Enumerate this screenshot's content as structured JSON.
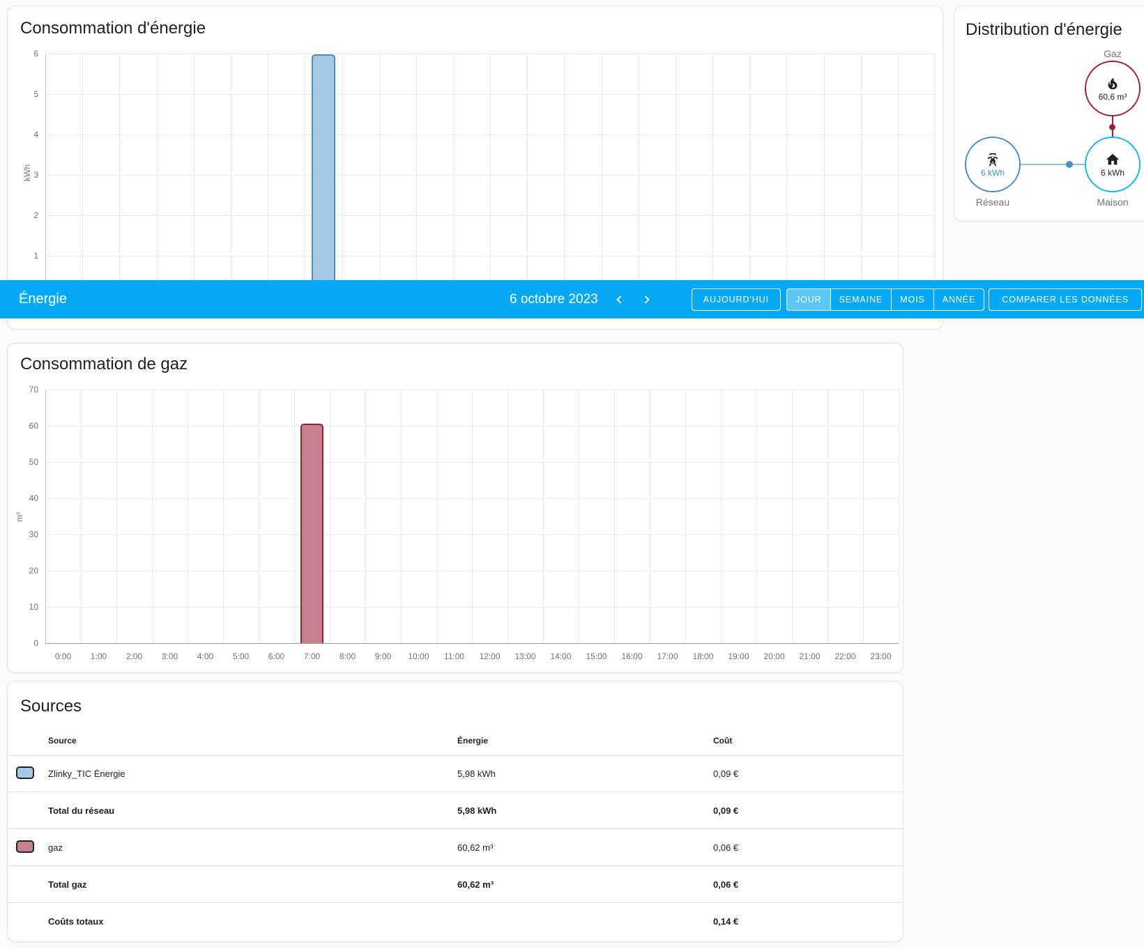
{
  "energy_card": {
    "title": "Consommation d'énergie"
  },
  "gas_card": {
    "title": "Consommation de gaz"
  },
  "distribution_card": {
    "title": "Distribution d'énergie",
    "gaz": {
      "label": "Gaz",
      "value": "60,6 m³",
      "icon": "fire-icon"
    },
    "reseau": {
      "label": "Réseau",
      "value": "6 kWh",
      "icon": "transmission-tower-icon"
    },
    "maison": {
      "label": "Maison",
      "value": "6 kWh",
      "icon": "home-icon"
    }
  },
  "toolbar": {
    "title": "Énergie",
    "date": "6 octobre 2023",
    "prev_icon": "chevron-left-icon",
    "next_icon": "chevron-right-icon",
    "today": "AUJOURD'HUI",
    "periods": [
      "JOUR",
      "SEMAINE",
      "MOIS",
      "ANNÉE"
    ],
    "selected_period": "JOUR",
    "compare": "COMPARER LES DONNÉES"
  },
  "sources_card": {
    "title": "Sources",
    "headers": {
      "source": "Source",
      "energy": "Énergie",
      "cost": "Coût"
    },
    "rows": [
      {
        "label": "Zlinky_TIC Énergie",
        "energy": "5,98 kWh",
        "cost": "0,09 €",
        "swatch": "blue",
        "bold": false
      },
      {
        "label": "Total du réseau",
        "energy": "5,98 kWh",
        "cost": "0,09 €",
        "swatch": null,
        "bold": true
      },
      {
        "label": "gaz",
        "energy": "60,62 m³",
        "cost": "0,06 €",
        "swatch": "red",
        "bold": false
      },
      {
        "label": "Total gaz",
        "energy": "60,62 m³",
        "cost": "0,06 €",
        "swatch": null,
        "bold": true
      },
      {
        "label": "Coûts totaux",
        "energy": "",
        "cost": "0,14 €",
        "swatch": null,
        "bold": true
      }
    ]
  },
  "chart_data": [
    {
      "type": "bar",
      "title": "Consommation d'énergie",
      "ylabel": "kWh",
      "ylim": [
        0,
        6
      ],
      "yticks": [
        0,
        1,
        2,
        3,
        4,
        5,
        6
      ],
      "grid": true,
      "x_labels_visible": false,
      "categories": [
        "0:00",
        "1:00",
        "2:00",
        "3:00",
        "4:00",
        "5:00",
        "6:00",
        "7:00",
        "8:00",
        "9:00",
        "10:00",
        "11:00",
        "12:00",
        "13:00",
        "14:00",
        "15:00",
        "16:00",
        "17:00",
        "18:00",
        "19:00",
        "20:00",
        "21:00",
        "22:00",
        "23:00"
      ],
      "series": [
        {
          "name": "Zlinky_TIC Énergie",
          "values": [
            0,
            0,
            0,
            0,
            0,
            0,
            0,
            5.98,
            0,
            0,
            0,
            0,
            0,
            0,
            0,
            0,
            0,
            0,
            0,
            0,
            0,
            0,
            0,
            0
          ]
        }
      ]
    },
    {
      "type": "bar",
      "title": "Consommation de gaz",
      "ylabel": "m³",
      "ylim": [
        0,
        70
      ],
      "yticks": [
        0,
        10,
        20,
        30,
        40,
        50,
        60,
        70
      ],
      "grid": true,
      "x_labels_visible": true,
      "categories": [
        "0:00",
        "1:00",
        "2:00",
        "3:00",
        "4:00",
        "5:00",
        "6:00",
        "7:00",
        "8:00",
        "9:00",
        "10:00",
        "11:00",
        "12:00",
        "13:00",
        "14:00",
        "15:00",
        "16:00",
        "17:00",
        "18:00",
        "19:00",
        "20:00",
        "21:00",
        "22:00",
        "23:00"
      ],
      "series": [
        {
          "name": "gaz",
          "values": [
            0,
            0,
            0,
            0,
            0,
            0,
            0,
            60.62,
            0,
            0,
            0,
            0,
            0,
            0,
            0,
            0,
            0,
            0,
            0,
            0,
            0,
            0,
            0,
            0
          ]
        }
      ]
    }
  ],
  "colors": {
    "toolbar_blue": "#03a9f4",
    "toolbar_selected": "#5ec5f2",
    "energy_bar_fill": "#a5c8e4",
    "energy_bar_border": "#4a8fc4",
    "gas_bar_fill": "#c5818f",
    "gas_bar_border": "#8c2333",
    "gas_node": "#9e2139",
    "grid_node": "#4a8fc4",
    "home_node": "#16b4f0",
    "text_secondary": "#727272"
  }
}
